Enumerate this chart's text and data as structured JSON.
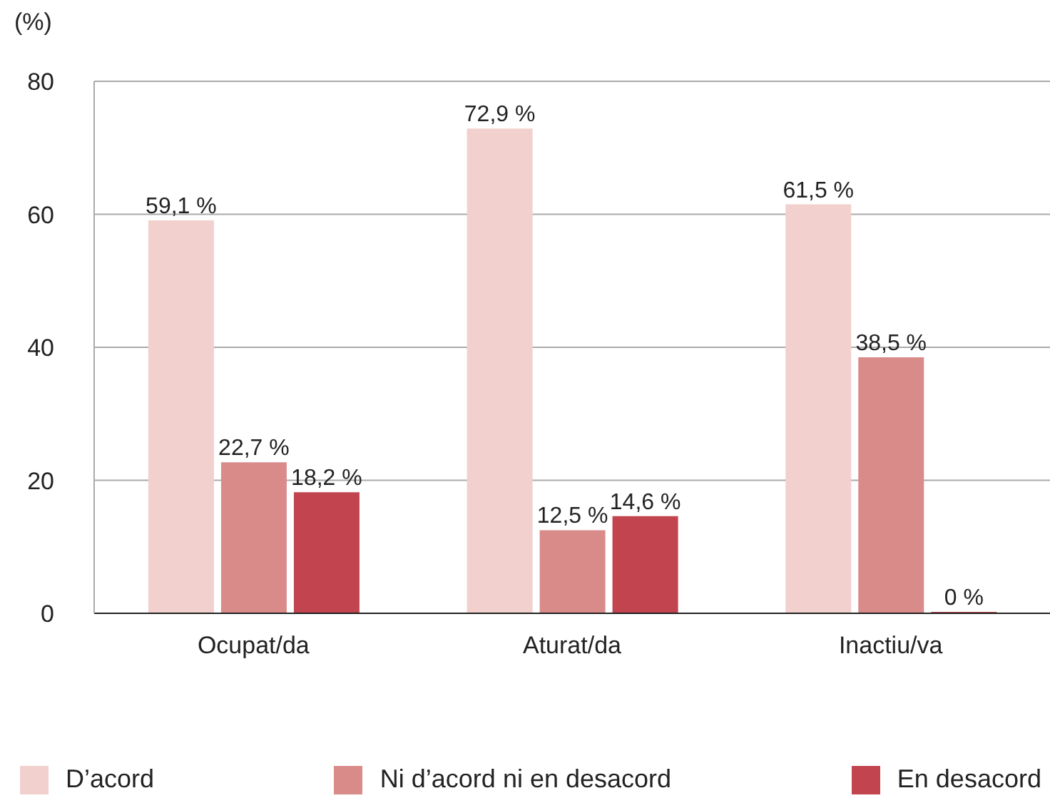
{
  "chart_data": {
    "type": "bar",
    "ylabel": "(%)",
    "categories": [
      "Ocupat/da",
      "Aturat/da",
      "Inactiu/va"
    ],
    "series": [
      {
        "name": "D’acord",
        "color": "#f2d0cd",
        "values": [
          59.1,
          72.9,
          61.5
        ],
        "value_labels": [
          "59,1 %",
          "72,9 %",
          "61,5 %"
        ]
      },
      {
        "name": "Ni d’acord ni en desacord",
        "color": "#d98b89",
        "values": [
          22.7,
          12.5,
          38.5
        ],
        "value_labels": [
          "22,7 %",
          "12,5 %",
          "38,5 %"
        ]
      },
      {
        "name": "En desacord",
        "color": "#c1444f",
        "values": [
          18.2,
          14.6,
          0
        ],
        "value_labels": [
          "18,2 %",
          "14,6 %",
          "0 %"
        ]
      }
    ],
    "ylim": [
      0,
      80
    ],
    "yticks": [
      0,
      20,
      40,
      60,
      80
    ],
    "grid": "y",
    "legend": "bottom"
  }
}
